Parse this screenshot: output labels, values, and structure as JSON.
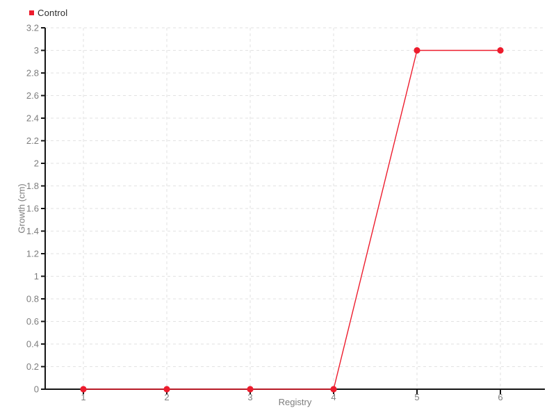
{
  "chart_data": {
    "type": "line",
    "title": "",
    "xlabel": "Registry",
    "ylabel": "Growth (cm)",
    "series": [
      {
        "name": "Control",
        "color": "#ed1c2d",
        "x": [
          1,
          2,
          3,
          4,
          5,
          6
        ],
        "values": [
          0,
          0,
          0,
          0,
          3,
          3
        ]
      }
    ],
    "xticks": [
      1,
      2,
      3,
      4,
      5,
      6
    ],
    "xtick_labels": [
      "1",
      "2",
      "3",
      "4",
      "5",
      "6"
    ],
    "yticks": [
      0,
      0.2,
      0.4,
      0.6,
      0.8,
      1,
      1.2,
      1.4,
      1.6,
      1.8,
      2,
      2.2,
      2.4,
      2.6,
      2.8,
      3,
      3.2
    ],
    "ytick_labels": [
      "0",
      "0.2",
      "0.4",
      "0.6",
      "0.8",
      "1",
      "1.2",
      "1.4",
      "1.6",
      "1.8",
      "2",
      "2.2",
      "2.4",
      "2.6",
      "2.8",
      "3",
      "3.2"
    ],
    "xlim": [
      0.54,
      6.53
    ],
    "ylim": [
      0,
      3.2
    ],
    "grid": true,
    "grid_style": "dashed",
    "legend_position": "top-left",
    "colors": {
      "series": "#ed1c2d",
      "grid": "#e2e2e2",
      "axis": "#141414",
      "tick_label": "#7d7d7d",
      "axis_label": "#7d7d7d",
      "legend_label": "#2a2a2a",
      "background": "#ffffff"
    }
  }
}
